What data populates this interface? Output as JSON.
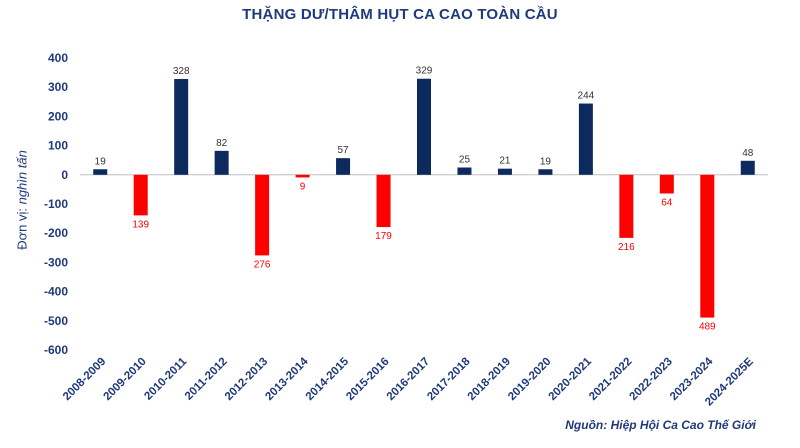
{
  "chart_data": {
    "type": "bar",
    "title": "THẶNG DƯ/THÂM HỤT CA CAO TOÀN CẦU",
    "ylabel_prefix": "Đơn vị:",
    "ylabel_unit": "nghìn tấn",
    "source": "Nguồn: Hiệp Hội Ca Cao Thế Giới",
    "categories": [
      "2008-2009",
      "2009-2010",
      "2010-2011",
      "2011-2012",
      "2012-2013",
      "2013-2014",
      "2014-2015",
      "2015-2016",
      "2016-2017",
      "2017-2018",
      "2018-2019",
      "2019-2020",
      "2020-2021",
      "2021-2022",
      "2022-2023",
      "2023-2024",
      "2024-2025E"
    ],
    "values": [
      19,
      -139,
      328,
      82,
      -276,
      -9,
      57,
      -179,
      329,
      25,
      21,
      19,
      244,
      -216,
      -64,
      -489,
      48
    ],
    "data_labels": [
      "19",
      "139",
      "328",
      "82",
      "276",
      "9",
      "57",
      "179",
      "329",
      "25",
      "21",
      "19",
      "244",
      "216",
      "64",
      "489",
      "48"
    ],
    "ylim": [
      -600,
      400
    ],
    "yticks": [
      -600,
      -500,
      -400,
      -300,
      -200,
      -100,
      0,
      100,
      200,
      300,
      400
    ],
    "grid": false,
    "colors": {
      "positive": "#0d2a5e",
      "negative": "#ff0000",
      "axis_text": "#1f3a7a"
    }
  }
}
